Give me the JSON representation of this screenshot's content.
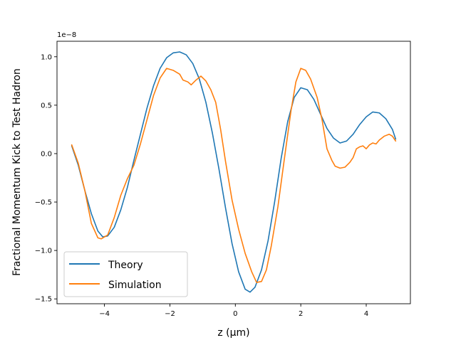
{
  "chart_data": {
    "type": "line",
    "xlabel": "z (μm)",
    "ylabel": "Fractional Momentum Kick to Test Hadron",
    "y_offset_label": "1e−8",
    "xlim": [
      -5.45,
      5.35
    ],
    "ylim": [
      -1.55,
      1.16
    ],
    "x_ticks": [
      -4,
      -2,
      0,
      2,
      4
    ],
    "x_tick_labels": [
      "−4",
      "−2",
      "0",
      "2",
      "4"
    ],
    "y_ticks": [
      -1.5,
      -1.0,
      -0.5,
      0.0,
      0.5,
      1.0
    ],
    "y_tick_labels": [
      "−1.5",
      "−1.0",
      "−0.5",
      "0.0",
      "0.5",
      "1.0"
    ],
    "grid": false,
    "legend_position": "lower-left",
    "series": [
      {
        "name": "Theory",
        "color": "#1f77b4",
        "points": [
          [
            -5.0,
            0.08
          ],
          [
            -4.8,
            -0.12
          ],
          [
            -4.6,
            -0.38
          ],
          [
            -4.4,
            -0.62
          ],
          [
            -4.2,
            -0.8
          ],
          [
            -4.05,
            -0.86
          ],
          [
            -3.9,
            -0.85
          ],
          [
            -3.7,
            -0.76
          ],
          [
            -3.5,
            -0.58
          ],
          [
            -3.3,
            -0.35
          ],
          [
            -3.1,
            -0.07
          ],
          [
            -2.9,
            0.2
          ],
          [
            -2.7,
            0.47
          ],
          [
            -2.5,
            0.7
          ],
          [
            -2.3,
            0.88
          ],
          [
            -2.1,
            0.99
          ],
          [
            -1.9,
            1.04
          ],
          [
            -1.7,
            1.05
          ],
          [
            -1.5,
            1.02
          ],
          [
            -1.3,
            0.93
          ],
          [
            -1.1,
            0.77
          ],
          [
            -0.9,
            0.53
          ],
          [
            -0.7,
            0.21
          ],
          [
            -0.5,
            -0.16
          ],
          [
            -0.3,
            -0.56
          ],
          [
            -0.1,
            -0.93
          ],
          [
            0.1,
            -1.22
          ],
          [
            0.3,
            -1.4
          ],
          [
            0.45,
            -1.43
          ],
          [
            0.6,
            -1.38
          ],
          [
            0.8,
            -1.2
          ],
          [
            1.0,
            -0.9
          ],
          [
            1.2,
            -0.5
          ],
          [
            1.4,
            -0.05
          ],
          [
            1.6,
            0.33
          ],
          [
            1.8,
            0.58
          ],
          [
            2.0,
            0.68
          ],
          [
            2.2,
            0.66
          ],
          [
            2.4,
            0.56
          ],
          [
            2.6,
            0.41
          ],
          [
            2.8,
            0.26
          ],
          [
            3.0,
            0.16
          ],
          [
            3.2,
            0.11
          ],
          [
            3.4,
            0.13
          ],
          [
            3.6,
            0.2
          ],
          [
            3.8,
            0.3
          ],
          [
            4.0,
            0.38
          ],
          [
            4.2,
            0.43
          ],
          [
            4.4,
            0.42
          ],
          [
            4.6,
            0.36
          ],
          [
            4.8,
            0.25
          ],
          [
            4.9,
            0.15
          ]
        ]
      },
      {
        "name": "Simulation",
        "color": "#ff7f0e",
        "points": [
          [
            -5.0,
            0.09
          ],
          [
            -4.8,
            -0.1
          ],
          [
            -4.6,
            -0.38
          ],
          [
            -4.4,
            -0.72
          ],
          [
            -4.2,
            -0.87
          ],
          [
            -4.1,
            -0.88
          ],
          [
            -3.9,
            -0.84
          ],
          [
            -3.7,
            -0.66
          ],
          [
            -3.5,
            -0.43
          ],
          [
            -3.3,
            -0.26
          ],
          [
            -3.1,
            -0.12
          ],
          [
            -2.9,
            0.1
          ],
          [
            -2.7,
            0.35
          ],
          [
            -2.5,
            0.6
          ],
          [
            -2.3,
            0.78
          ],
          [
            -2.1,
            0.88
          ],
          [
            -1.9,
            0.86
          ],
          [
            -1.7,
            0.82
          ],
          [
            -1.6,
            0.76
          ],
          [
            -1.45,
            0.74
          ],
          [
            -1.35,
            0.71
          ],
          [
            -1.2,
            0.76
          ],
          [
            -1.05,
            0.8
          ],
          [
            -0.9,
            0.75
          ],
          [
            -0.75,
            0.66
          ],
          [
            -0.6,
            0.53
          ],
          [
            -0.45,
            0.25
          ],
          [
            -0.3,
            -0.08
          ],
          [
            -0.1,
            -0.48
          ],
          [
            0.1,
            -0.78
          ],
          [
            0.3,
            -1.03
          ],
          [
            0.5,
            -1.22
          ],
          [
            0.65,
            -1.33
          ],
          [
            0.8,
            -1.32
          ],
          [
            0.95,
            -1.2
          ],
          [
            1.1,
            -0.95
          ],
          [
            1.3,
            -0.55
          ],
          [
            1.5,
            -0.05
          ],
          [
            1.7,
            0.44
          ],
          [
            1.85,
            0.74
          ],
          [
            2.0,
            0.88
          ],
          [
            2.15,
            0.86
          ],
          [
            2.3,
            0.77
          ],
          [
            2.5,
            0.58
          ],
          [
            2.65,
            0.35
          ],
          [
            2.8,
            0.05
          ],
          [
            2.95,
            -0.07
          ],
          [
            3.05,
            -0.13
          ],
          [
            3.2,
            -0.15
          ],
          [
            3.35,
            -0.14
          ],
          [
            3.5,
            -0.09
          ],
          [
            3.6,
            -0.04
          ],
          [
            3.7,
            0.05
          ],
          [
            3.8,
            0.07
          ],
          [
            3.9,
            0.08
          ],
          [
            4.0,
            0.05
          ],
          [
            4.1,
            0.09
          ],
          [
            4.2,
            0.11
          ],
          [
            4.3,
            0.1
          ],
          [
            4.4,
            0.14
          ],
          [
            4.55,
            0.18
          ],
          [
            4.7,
            0.2
          ],
          [
            4.8,
            0.18
          ],
          [
            4.9,
            0.13
          ]
        ]
      }
    ]
  }
}
